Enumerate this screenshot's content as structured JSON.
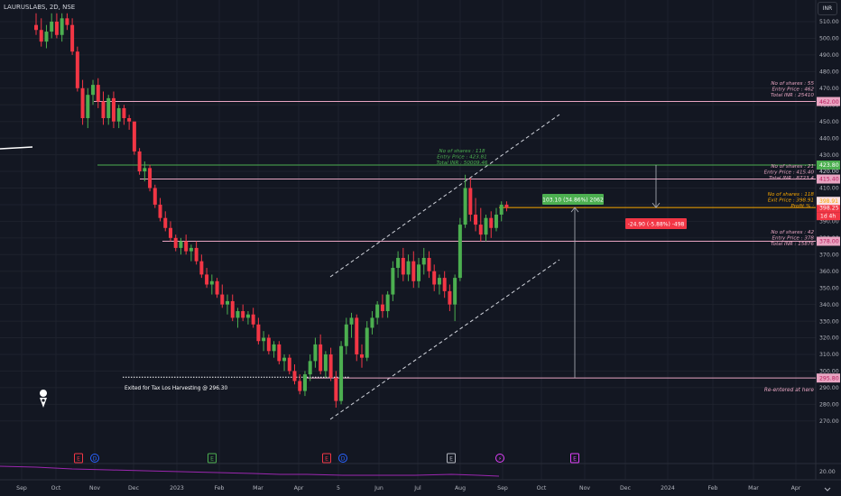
{
  "header": {
    "symbol": "LAURUSLABS, 2D, NSE"
  },
  "currency": "INR",
  "chart_data": {
    "type": "candlestick",
    "symbol": "LAURUSLABS",
    "interval": "2D",
    "exchange": "NSE",
    "ylim": [
      265,
      515
    ],
    "y_ticks": [
      270,
      280,
      290,
      300,
      310,
      320,
      330,
      340,
      350,
      360,
      370,
      380,
      390,
      400,
      410,
      420,
      430,
      440,
      450,
      460,
      470,
      480,
      490,
      500,
      510
    ],
    "x_labels": [
      "Sep",
      "Oct",
      "Nov",
      "Dec",
      "2023",
      "Feb",
      "Mar",
      "Apr",
      "5",
      "Jun",
      "Jul",
      "Aug",
      "Sep",
      "Oct",
      "Nov",
      "Dec",
      "2024",
      "Feb",
      "Mar",
      "Apr"
    ],
    "candles": [
      {
        "o": 508,
        "h": 515,
        "l": 502,
        "c": 505
      },
      {
        "o": 505,
        "h": 512,
        "l": 495,
        "c": 498
      },
      {
        "o": 498,
        "h": 508,
        "l": 494,
        "c": 504
      },
      {
        "o": 504,
        "h": 515,
        "l": 500,
        "c": 510
      },
      {
        "o": 510,
        "h": 515,
        "l": 500,
        "c": 502
      },
      {
        "o": 502,
        "h": 515,
        "l": 498,
        "c": 512
      },
      {
        "o": 512,
        "h": 515,
        "l": 505,
        "c": 508
      },
      {
        "o": 508,
        "h": 512,
        "l": 490,
        "c": 492
      },
      {
        "o": 492,
        "h": 495,
        "l": 468,
        "c": 470
      },
      {
        "o": 470,
        "h": 475,
        "l": 448,
        "c": 452
      },
      {
        "o": 452,
        "h": 470,
        "l": 446,
        "c": 466
      },
      {
        "o": 466,
        "h": 475,
        "l": 460,
        "c": 472
      },
      {
        "o": 472,
        "h": 476,
        "l": 458,
        "c": 462
      },
      {
        "o": 462,
        "h": 468,
        "l": 448,
        "c": 452
      },
      {
        "o": 452,
        "h": 466,
        "l": 448,
        "c": 464
      },
      {
        "o": 464,
        "h": 468,
        "l": 446,
        "c": 450
      },
      {
        "o": 450,
        "h": 460,
        "l": 446,
        "c": 458
      },
      {
        "o": 458,
        "h": 460,
        "l": 448,
        "c": 452
      },
      {
        "o": 452,
        "h": 454,
        "l": 445,
        "c": 450
      },
      {
        "o": 450,
        "h": 448,
        "l": 430,
        "c": 432
      },
      {
        "o": 432,
        "h": 434,
        "l": 418,
        "c": 420
      },
      {
        "o": 420,
        "h": 426,
        "l": 414,
        "c": 422
      },
      {
        "o": 422,
        "h": 424,
        "l": 408,
        "c": 410
      },
      {
        "o": 410,
        "h": 412,
        "l": 398,
        "c": 400
      },
      {
        "o": 400,
        "h": 404,
        "l": 390,
        "c": 392
      },
      {
        "o": 392,
        "h": 396,
        "l": 384,
        "c": 386
      },
      {
        "o": 386,
        "h": 390,
        "l": 378,
        "c": 380
      },
      {
        "o": 380,
        "h": 382,
        "l": 372,
        "c": 374
      },
      {
        "o": 374,
        "h": 380,
        "l": 370,
        "c": 378
      },
      {
        "o": 378,
        "h": 382,
        "l": 370,
        "c": 372
      },
      {
        "o": 372,
        "h": 376,
        "l": 366,
        "c": 374
      },
      {
        "o": 374,
        "h": 378,
        "l": 364,
        "c": 366
      },
      {
        "o": 366,
        "h": 370,
        "l": 356,
        "c": 358
      },
      {
        "o": 358,
        "h": 362,
        "l": 350,
        "c": 352
      },
      {
        "o": 352,
        "h": 358,
        "l": 346,
        "c": 354
      },
      {
        "o": 354,
        "h": 356,
        "l": 344,
        "c": 346
      },
      {
        "o": 346,
        "h": 352,
        "l": 338,
        "c": 340
      },
      {
        "o": 340,
        "h": 346,
        "l": 334,
        "c": 342
      },
      {
        "o": 342,
        "h": 346,
        "l": 330,
        "c": 332
      },
      {
        "o": 332,
        "h": 338,
        "l": 326,
        "c": 336
      },
      {
        "o": 336,
        "h": 340,
        "l": 330,
        "c": 332
      },
      {
        "o": 332,
        "h": 336,
        "l": 328,
        "c": 334
      },
      {
        "o": 334,
        "h": 338,
        "l": 326,
        "c": 328
      },
      {
        "o": 328,
        "h": 332,
        "l": 316,
        "c": 318
      },
      {
        "o": 318,
        "h": 324,
        "l": 312,
        "c": 320
      },
      {
        "o": 320,
        "h": 322,
        "l": 310,
        "c": 312
      },
      {
        "o": 312,
        "h": 318,
        "l": 308,
        "c": 316
      },
      {
        "o": 316,
        "h": 318,
        "l": 304,
        "c": 306
      },
      {
        "o": 306,
        "h": 310,
        "l": 300,
        "c": 308
      },
      {
        "o": 308,
        "h": 310,
        "l": 298,
        "c": 300
      },
      {
        "o": 300,
        "h": 304,
        "l": 292,
        "c": 294
      },
      {
        "o": 294,
        "h": 298,
        "l": 286,
        "c": 288
      },
      {
        "o": 288,
        "h": 300,
        "l": 285,
        "c": 298
      },
      {
        "o": 298,
        "h": 310,
        "l": 294,
        "c": 306
      },
      {
        "o": 306,
        "h": 320,
        "l": 302,
        "c": 316
      },
      {
        "o": 316,
        "h": 322,
        "l": 298,
        "c": 300
      },
      {
        "o": 300,
        "h": 312,
        "l": 296,
        "c": 310
      },
      {
        "o": 310,
        "h": 314,
        "l": 294,
        "c": 296
      },
      {
        "o": 296,
        "h": 300,
        "l": 278,
        "c": 282
      },
      {
        "o": 282,
        "h": 318,
        "l": 280,
        "c": 315
      },
      {
        "o": 315,
        "h": 332,
        "l": 310,
        "c": 328
      },
      {
        "o": 328,
        "h": 335,
        "l": 320,
        "c": 332
      },
      {
        "o": 332,
        "h": 334,
        "l": 306,
        "c": 310
      },
      {
        "o": 310,
        "h": 316,
        "l": 302,
        "c": 308
      },
      {
        "o": 308,
        "h": 330,
        "l": 306,
        "c": 326
      },
      {
        "o": 326,
        "h": 336,
        "l": 322,
        "c": 332
      },
      {
        "o": 332,
        "h": 342,
        "l": 328,
        "c": 340
      },
      {
        "o": 340,
        "h": 346,
        "l": 332,
        "c": 336
      },
      {
        "o": 336,
        "h": 348,
        "l": 332,
        "c": 346
      },
      {
        "o": 346,
        "h": 366,
        "l": 342,
        "c": 362
      },
      {
        "o": 362,
        "h": 372,
        "l": 356,
        "c": 368
      },
      {
        "o": 368,
        "h": 374,
        "l": 354,
        "c": 358
      },
      {
        "o": 358,
        "h": 370,
        "l": 354,
        "c": 366
      },
      {
        "o": 366,
        "h": 372,
        "l": 350,
        "c": 354
      },
      {
        "o": 354,
        "h": 368,
        "l": 350,
        "c": 364
      },
      {
        "o": 364,
        "h": 374,
        "l": 358,
        "c": 368
      },
      {
        "o": 368,
        "h": 372,
        "l": 356,
        "c": 360
      },
      {
        "o": 360,
        "h": 364,
        "l": 348,
        "c": 352
      },
      {
        "o": 352,
        "h": 358,
        "l": 346,
        "c": 356
      },
      {
        "o": 356,
        "h": 360,
        "l": 344,
        "c": 348
      },
      {
        "o": 348,
        "h": 352,
        "l": 336,
        "c": 340
      },
      {
        "o": 340,
        "h": 358,
        "l": 330,
        "c": 356
      },
      {
        "o": 356,
        "h": 392,
        "l": 354,
        "c": 388
      },
      {
        "o": 388,
        "h": 418,
        "l": 386,
        "c": 410
      },
      {
        "o": 410,
        "h": 416,
        "l": 390,
        "c": 394
      },
      {
        "o": 394,
        "h": 404,
        "l": 384,
        "c": 388
      },
      {
        "o": 388,
        "h": 398,
        "l": 378,
        "c": 382
      },
      {
        "o": 382,
        "h": 394,
        "l": 378,
        "c": 392
      },
      {
        "o": 392,
        "h": 396,
        "l": 380,
        "c": 386
      },
      {
        "o": 386,
        "h": 398,
        "l": 384,
        "c": 394
      },
      {
        "o": 394,
        "h": 402,
        "l": 390,
        "c": 400
      },
      {
        "o": 400,
        "h": 402,
        "l": 396,
        "c": 398.25
      }
    ],
    "horizontal_levels": [
      {
        "price": 462.0,
        "color": "#e8a5c2"
      },
      {
        "price": 423.8,
        "color": "#4caf50"
      },
      {
        "price": 415.4,
        "color": "#e8a5c2"
      },
      {
        "price": 398.25,
        "color": "#f7a600"
      },
      {
        "price": 378.0,
        "color": "#e8a5c2"
      },
      {
        "price": 295.8,
        "color": "#e8a5c2"
      }
    ],
    "price_labels": [
      {
        "text": "462.00",
        "price": 462.0,
        "bg": "#e8a5c2",
        "fg": "#b71c5c"
      },
      {
        "text": "423.80",
        "price": 423.8,
        "bg": "#4caf50",
        "fg": "#ffffff"
      },
      {
        "text": "420.00",
        "price": 420.0,
        "bg": null,
        "fg": "#b2b5be"
      },
      {
        "text": "415.40",
        "price": 415.4,
        "bg": "#e8a5c2",
        "fg": "#b71c5c"
      },
      {
        "text": "398.25",
        "price": 398.25,
        "bg": "#f23645",
        "fg": "#ffffff"
      },
      {
        "text": "378.00",
        "price": 378.0,
        "bg": "#e8a5c2",
        "fg": "#b71c5c"
      },
      {
        "text": "295.80",
        "price": 295.8,
        "bg": "#e8a5c2",
        "fg": "#b71c5c"
      }
    ],
    "countdown": "1d 4h",
    "faded_label": "398.91",
    "indicator_scale": "20.00",
    "annotations": {
      "b462": [
        "No of shares : 55",
        "Entry Price   : 462",
        "Total INR     : 25410"
      ],
      "b423": [
        "No of shares : 118",
        "Entry Price   : 423.81",
        "Total INR     : 50009.46"
      ],
      "b415": [
        "No of shares : 21",
        "Entry Price   : 415.40",
        "Total INR     : 8723.4"
      ],
      "exit": [
        "No of shares : 118",
        "Exit Price     : 398.91",
        "Profit %          :"
      ],
      "b378": [
        "No of shares : 42",
        "Entry Price   : 378",
        "Total INR     : 15876"
      ],
      "exited": "Exited for Tax Los Harvesting @ 296.30",
      "reentered": "Re-entered at here",
      "gain_box": "103.10 (34.86%) 2062",
      "loss_box": "-24.90 (-5.88%) -498"
    },
    "events": [
      {
        "label": "E",
        "color": "#f23645"
      },
      {
        "label": "D",
        "color": "#2962ff"
      },
      {
        "label": "E",
        "color": "#4caf50"
      },
      {
        "label": "E",
        "color": "#f23645"
      },
      {
        "label": "D",
        "color": "#2962ff"
      },
      {
        "label": "E",
        "color": "#b2b5be"
      },
      {
        "label": "⚡",
        "color": "#e040fb"
      },
      {
        "label": "E",
        "color": "#e040fb"
      }
    ]
  }
}
